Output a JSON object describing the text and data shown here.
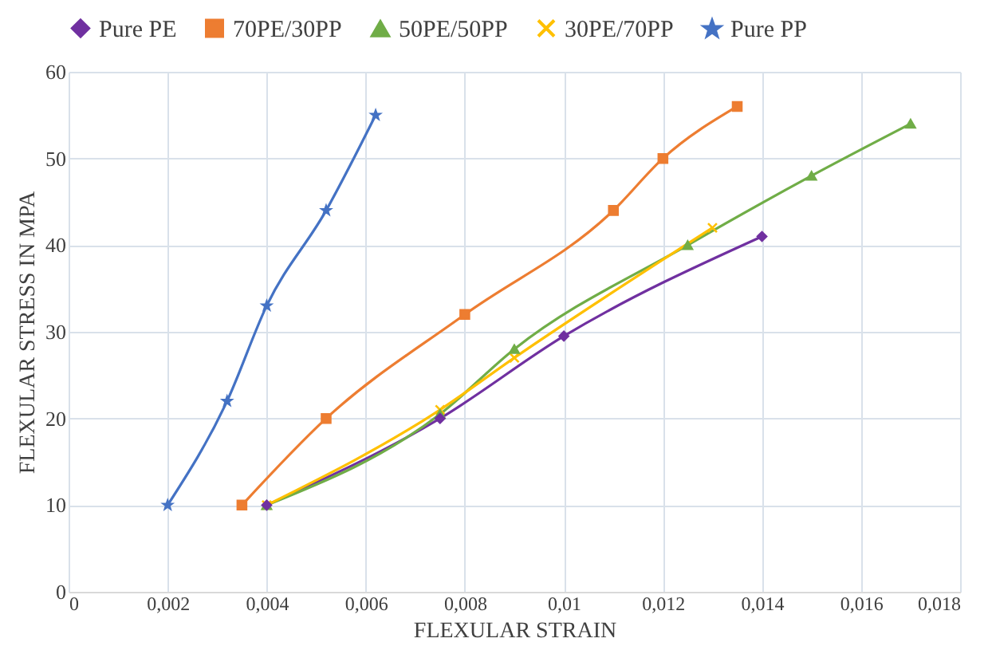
{
  "chart_data": {
    "type": "line",
    "xlabel": "FLEXULAR STRAIN",
    "ylabel": "FLEXULAR STRESS IN MPA",
    "series": [
      {
        "name": "Pure PE",
        "color": "#7030a0",
        "marker": "diamond",
        "x": [
          0.004,
          0.0075,
          0.01,
          0.014
        ],
        "values": [
          10,
          20,
          29.5,
          41
        ]
      },
      {
        "name": "70PE/30PP",
        "color": "#ed7d31",
        "marker": "square",
        "x": [
          0.0035,
          0.0052,
          0.008,
          0.011,
          0.012,
          0.0135
        ],
        "values": [
          10,
          20,
          32,
          44,
          50,
          56
        ]
      },
      {
        "name": "50PE/50PP",
        "color": "#70ad47",
        "marker": "triangle",
        "x": [
          0.004,
          0.0075,
          0.009,
          0.0125,
          0.015,
          0.017
        ],
        "values": [
          10,
          20.5,
          28,
          40,
          48,
          54
        ]
      },
      {
        "name": "30PE/70PP",
        "color": "#ffc000",
        "marker": "cross",
        "x": [
          0.004,
          0.0075,
          0.009,
          0.013
        ],
        "values": [
          10,
          21,
          27,
          42
        ]
      },
      {
        "name": "Pure PP",
        "color": "#4472c4",
        "marker": "star",
        "x": [
          0.002,
          0.0032,
          0.004,
          0.0052,
          0.0062
        ],
        "values": [
          10,
          22,
          33,
          44,
          55
        ]
      }
    ],
    "xlim": [
      0,
      0.018
    ],
    "xticks": [
      0,
      {
        "value": 0.002,
        "label": "0,002"
      },
      {
        "value": 0.004,
        "label": "0,004"
      },
      {
        "value": 0.006,
        "label": "0,006"
      },
      {
        "value": 0.008,
        "label": "0,008"
      },
      {
        "value": 0.01,
        "label": "0,01"
      },
      {
        "value": 0.012,
        "label": "0,012"
      },
      {
        "value": 0.014,
        "label": "0,014"
      },
      {
        "value": 0.016,
        "label": "0,016"
      },
      {
        "value": 0.018,
        "label": "0,018"
      }
    ],
    "ylim": [
      0,
      60
    ],
    "yticks": [
      0,
      10,
      20,
      30,
      40,
      50,
      60
    ],
    "grid": true,
    "legend": "top",
    "line_style": "solid"
  }
}
